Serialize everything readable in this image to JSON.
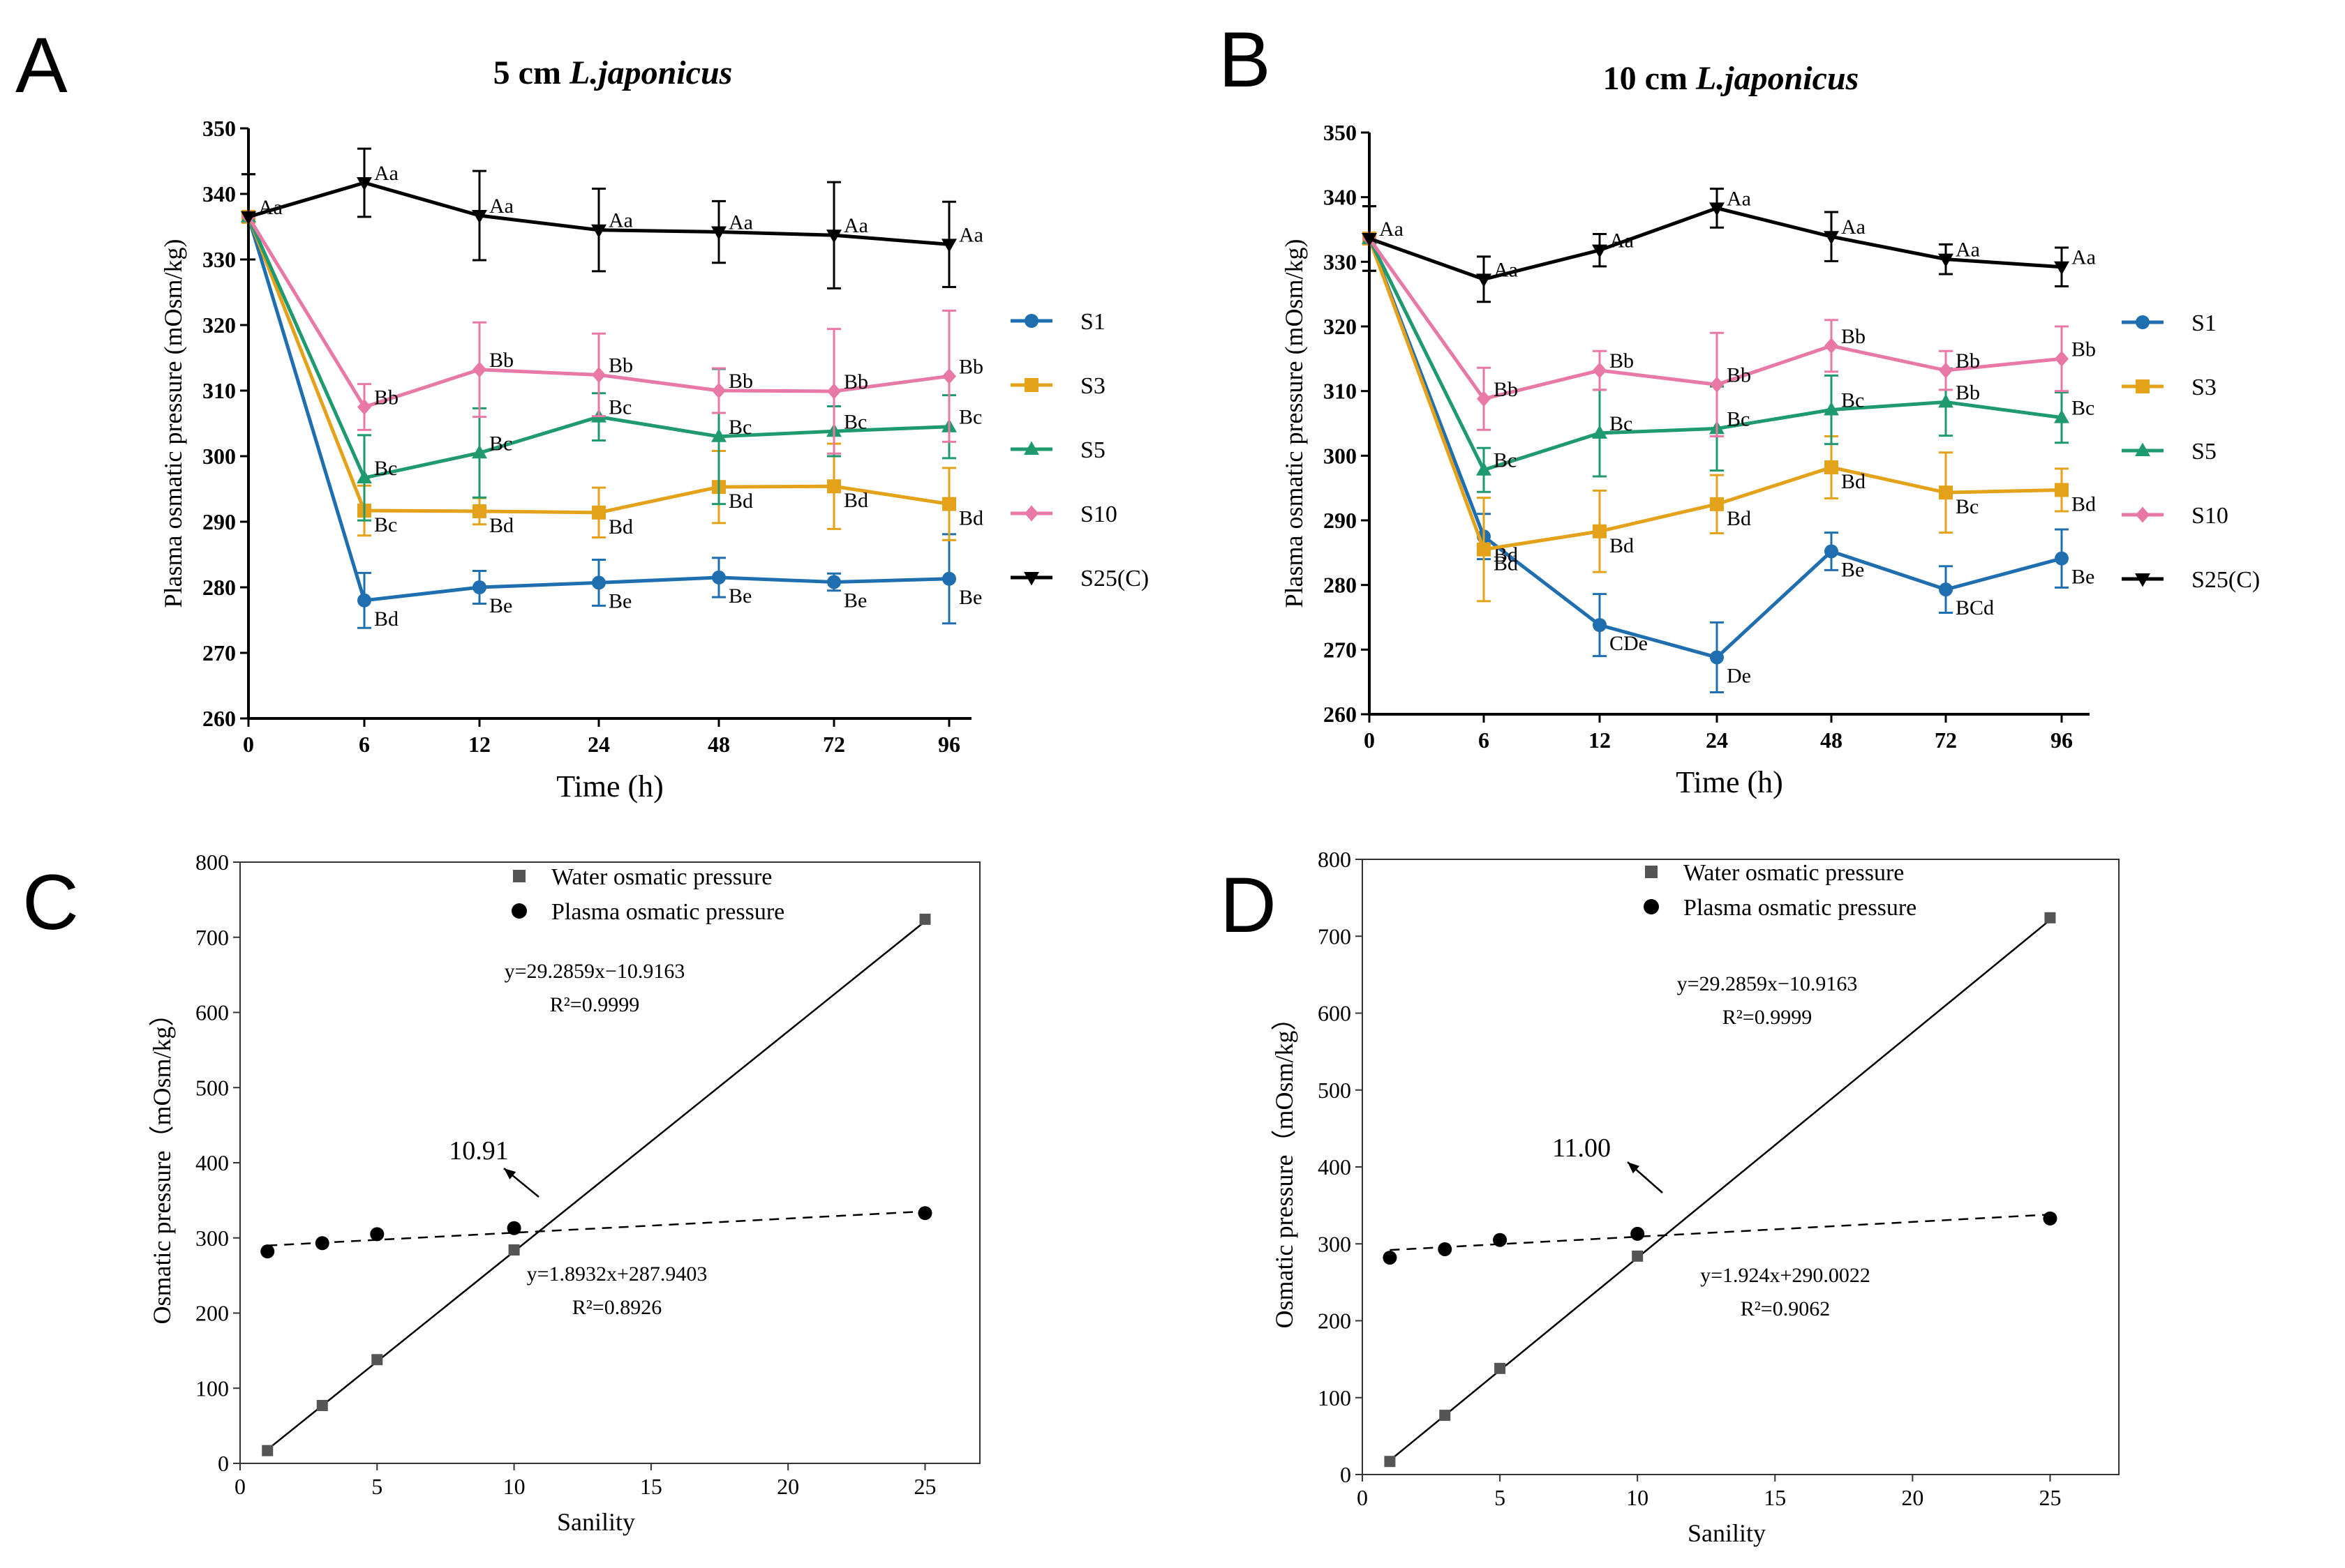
{
  "figure_name": "plasma-osmotic-pressure-figure",
  "colors": {
    "S1": "#1f6fb0",
    "S3": "#e3a21a",
    "S5": "#1e9a6e",
    "S10": "#e878a6",
    "S25C": "#000000",
    "water_marker": "#555555",
    "plasma_marker": "#000000"
  },
  "chart_data": [
    {
      "panel": "A",
      "type": "line",
      "title_prefix": "5 cm ",
      "title_species": "L.japonicus",
      "xlabel": "Time (h)",
      "ylabel": "Plasma osmatic pressure (mOsm/kg)",
      "categories": [
        "0",
        "6",
        "12",
        "24",
        "48",
        "72",
        "96"
      ],
      "ylim": [
        260,
        350
      ],
      "yticks": [
        260,
        270,
        280,
        290,
        300,
        310,
        320,
        330,
        340,
        350
      ],
      "legend_position": "right",
      "series": [
        {
          "name": "S1",
          "key": "S1",
          "marker": "circle",
          "values": [
            336.5,
            278,
            280,
            280.7,
            281.5,
            280.8,
            281.3
          ],
          "errors": [
            6.5,
            4.2,
            2.5,
            3.5,
            3,
            1.3,
            6.8
          ],
          "labels": [
            "",
            "Bd",
            "Be",
            "Be",
            "Be",
            "Be",
            "Be"
          ]
        },
        {
          "name": "S3",
          "key": "S3",
          "marker": "square",
          "values": [
            336.5,
            291.7,
            291.6,
            291.4,
            295.3,
            295.4,
            292.7
          ],
          "errors": [
            6.5,
            3.8,
            2,
            3.8,
            5.5,
            6.5,
            5.5
          ],
          "labels": [
            "",
            "Bc",
            "Bd",
            "Bd",
            "Bd",
            "Bd",
            "Bd"
          ]
        },
        {
          "name": "S5",
          "key": "S5",
          "marker": "triangle",
          "values": [
            336.5,
            296.7,
            300.5,
            306,
            303,
            303.8,
            304.5
          ],
          "errors": [
            6.5,
            6.5,
            6.8,
            3.6,
            10.3,
            3.8,
            4.8
          ],
          "labels": [
            "",
            "Bc",
            "Bc",
            "Bc",
            "Bc",
            "Bc",
            "Bc"
          ]
        },
        {
          "name": "S10",
          "key": "S10",
          "marker": "diamond",
          "values": [
            336.5,
            307.5,
            313.2,
            312.4,
            310,
            309.9,
            312.2
          ],
          "errors": [
            6.5,
            3.5,
            7.2,
            6.3,
            3.4,
            9.5,
            10
          ],
          "labels": [
            "",
            "Bb",
            "Bb",
            "Bb",
            "Bb",
            "Bb",
            "Bb"
          ]
        },
        {
          "name": "S25(C)",
          "key": "S25C",
          "marker": "triangle-down",
          "values": [
            336.5,
            341.7,
            336.7,
            334.5,
            334.2,
            333.7,
            332.3
          ],
          "errors": [
            6.5,
            5.2,
            6.8,
            6.3,
            4.7,
            8.1,
            6.5
          ],
          "labels": [
            "Aa",
            "Aa",
            "Aa",
            "Aa",
            "Aa",
            "Aa",
            "Aa"
          ]
        }
      ]
    },
    {
      "panel": "B",
      "type": "line",
      "title_prefix": "10 cm ",
      "title_species": "L.japonicus",
      "xlabel": "Time (h)",
      "ylabel": "Plasma osmatic pressure (mOsm/kg)",
      "categories": [
        "0",
        "6",
        "12",
        "24",
        "48",
        "72",
        "96"
      ],
      "ylim": [
        260,
        350
      ],
      "yticks": [
        260,
        270,
        280,
        290,
        300,
        310,
        320,
        330,
        340,
        350
      ],
      "legend_position": "right",
      "series": [
        {
          "name": "S1",
          "key": "S1",
          "marker": "circle",
          "values": [
            333.6,
            287.5,
            273.8,
            268.8,
            285.2,
            279.3,
            284.1
          ],
          "errors": [
            5,
            3.5,
            4.8,
            5.4,
            2.9,
            3.6,
            4.5
          ],
          "labels": [
            "",
            "Bd",
            "CDe",
            "De",
            "Be",
            "BCd",
            "Be"
          ]
        },
        {
          "name": "S3",
          "key": "S3",
          "marker": "square",
          "values": [
            333.6,
            285.5,
            288.3,
            292.5,
            298.2,
            294.3,
            294.7
          ],
          "errors": [
            5,
            8,
            6.3,
            4.5,
            4.8,
            6.2,
            3.3
          ],
          "labels": [
            "",
            "Bd",
            "Bd",
            "Bd",
            "Bd",
            "Bc",
            "Bd"
          ]
        },
        {
          "name": "S5",
          "key": "S5",
          "marker": "triangle",
          "values": [
            333.6,
            297.8,
            303.5,
            304.2,
            307.1,
            308.3,
            305.9
          ],
          "errors": [
            5,
            3.4,
            6.7,
            6.5,
            5.3,
            5.2,
            3.9
          ],
          "labels": [
            "",
            "Bc",
            "Bc",
            "Bc",
            "Bc",
            "Bb",
            "Bc"
          ]
        },
        {
          "name": "S10",
          "key": "S10",
          "marker": "diamond",
          "values": [
            333.6,
            308.8,
            313.2,
            311,
            317,
            313.2,
            315
          ],
          "errors": [
            5,
            4.8,
            3,
            8,
            4,
            3,
            5
          ],
          "labels": [
            "",
            "Bb",
            "Bb",
            "Bb",
            "Bb",
            "Bb",
            "Bb"
          ]
        },
        {
          "name": "S25(C)",
          "key": "S25C",
          "marker": "triangle-down",
          "values": [
            333.6,
            327.3,
            331.8,
            338.3,
            333.9,
            330.4,
            329.2
          ],
          "errors": [
            5,
            3.5,
            2.5,
            3,
            3.8,
            2.3,
            3
          ],
          "labels": [
            "Aa",
            "Aa",
            "Aa",
            "Aa",
            "Aa",
            "Aa",
            "Aa"
          ]
        }
      ]
    },
    {
      "panel": "C",
      "type": "scatter",
      "xlabel": "Sanility",
      "ylabel": "Osmatic pressure（mOsm/kg）",
      "xlim": [
        0,
        27
      ],
      "ylim": [
        0,
        800
      ],
      "xticks": [
        0,
        5,
        10,
        15,
        20,
        25
      ],
      "yticks": [
        0,
        100,
        200,
        300,
        400,
        500,
        600,
        700,
        800
      ],
      "legend_position": "top-center",
      "legend": [
        "Water osmatic pressure",
        "Plasma osmatic pressure"
      ],
      "series": [
        {
          "name": "Water osmatic pressure",
          "marker": "square",
          "x": [
            1,
            3,
            5,
            10,
            25
          ],
          "y": [
            17,
            77,
            138,
            284,
            724
          ]
        },
        {
          "name": "Plasma osmatic pressure",
          "marker": "circle",
          "x": [
            1,
            3,
            5,
            10,
            25
          ],
          "y": [
            282,
            293,
            305,
            313,
            333
          ]
        }
      ],
      "water_fit": {
        "slope": 29.2859,
        "intercept": -10.9163,
        "equation": "y=29.2859x−10.9163",
        "r2": "R²=0.9999"
      },
      "plasma_fit": {
        "slope": 1.8932,
        "intercept": 287.9403,
        "equation": "y=1.8932x+287.9403",
        "r2": "R²=0.8926"
      },
      "intersection_label": "10.91",
      "intersection_x": 10.91
    },
    {
      "panel": "D",
      "type": "scatter",
      "xlabel": "Sanility",
      "ylabel": "Osmatic pressure（mOsm/kg）",
      "xlim": [
        0,
        27.5
      ],
      "ylim": [
        0,
        800
      ],
      "xticks": [
        0,
        5,
        10,
        15,
        20,
        25
      ],
      "yticks": [
        0,
        100,
        200,
        300,
        400,
        500,
        600,
        700,
        800
      ],
      "legend_position": "top-center",
      "legend": [
        "Water osmatic pressure",
        "Plasma osmatic pressure"
      ],
      "series": [
        {
          "name": "Water osmatic pressure",
          "marker": "square",
          "x": [
            1,
            3,
            5,
            10,
            25
          ],
          "y": [
            17,
            77,
            138,
            284,
            724
          ]
        },
        {
          "name": "Plasma osmatic pressure",
          "marker": "circle",
          "x": [
            1,
            3,
            5,
            10,
            25
          ],
          "y": [
            282,
            293,
            305,
            313,
            333
          ]
        }
      ],
      "water_fit": {
        "slope": 29.2859,
        "intercept": -10.9163,
        "equation": "y=29.2859x−10.9163",
        "r2": "R²=0.9999"
      },
      "plasma_fit": {
        "slope": 1.924,
        "intercept": 290.0022,
        "equation": "y=1.924x+290.0022",
        "r2": "R²=0.9062"
      },
      "intersection_label": "11.00",
      "intersection_x": 11.0
    }
  ]
}
